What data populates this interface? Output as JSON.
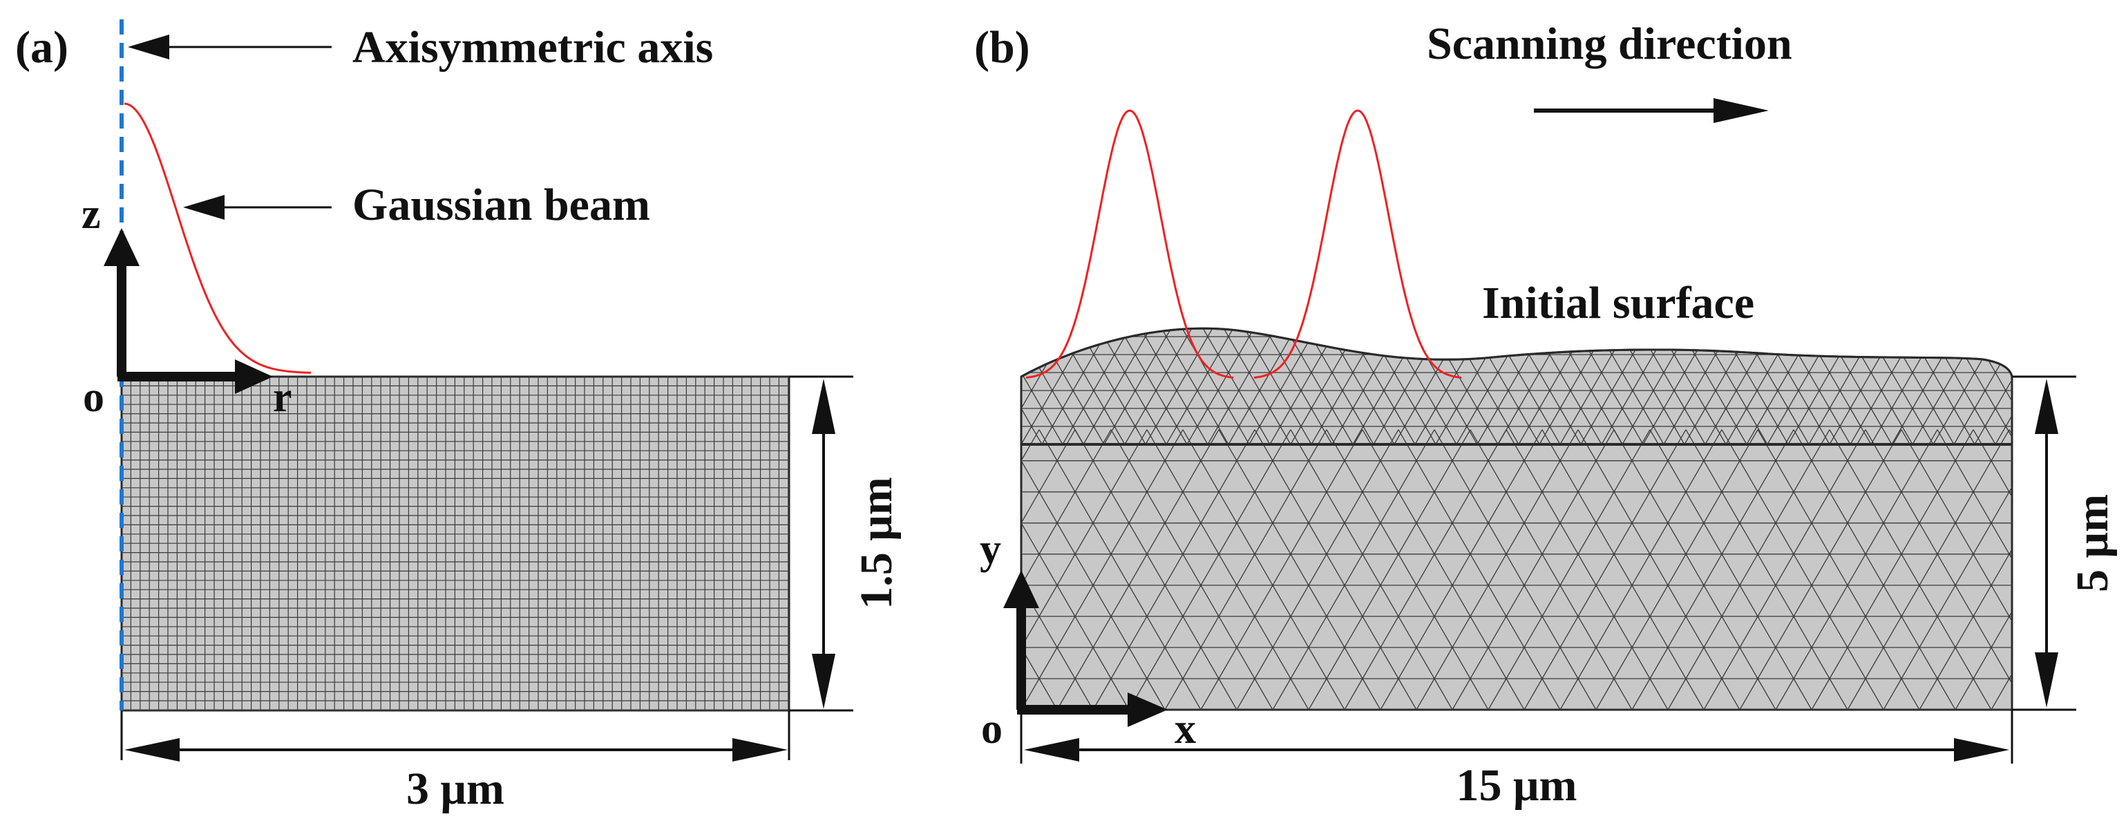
{
  "panel_a": {
    "label": "(a)",
    "axisymmetric_label": "Axisymmetric axis",
    "gaussian_label": "Gaussian beam",
    "axis_z": "z",
    "axis_r": "r",
    "origin": "o",
    "width_label": "3 μm",
    "height_label": "1.5 μm",
    "axis_line_color": "#1f77d0",
    "beam_color": "#ee2222"
  },
  "panel_b": {
    "label": "(b)",
    "scanning_label": "Scanning direction",
    "initial_surface_label": "Initial surface",
    "axis_y": "y",
    "axis_x": "x",
    "origin": "o",
    "width_label": "15 μm",
    "height_label": "5 μm",
    "beam_color": "#ee2222"
  },
  "colors": {
    "mesh_fill": "#c8c8c8",
    "mesh_line": "#3a3a3a",
    "ink": "#111111"
  }
}
